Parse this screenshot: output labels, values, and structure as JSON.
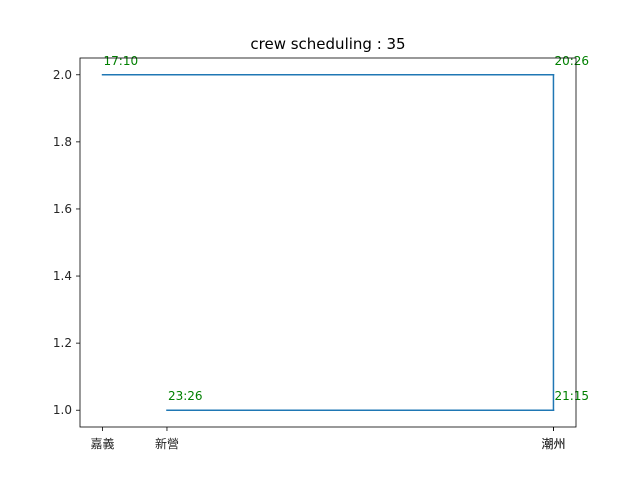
{
  "chart_data": {
    "type": "line",
    "title": "crew scheduling : 35",
    "xlabel": "",
    "ylabel": "",
    "x_categories": [
      {
        "label": "嘉義",
        "x": 0
      },
      {
        "label": "新營",
        "x": 1
      },
      {
        "label": "潮州",
        "x": 7
      },
      {
        "label": "潮州",
        "x": 7
      }
    ],
    "xlim": [
      -0.35,
      7.35
    ],
    "ylim": [
      0.95,
      2.05
    ],
    "yticks": [
      1.0,
      1.2,
      1.4,
      1.6,
      1.8,
      2.0
    ],
    "ytick_labels": [
      "1.0",
      "1.2",
      "1.4",
      "1.6",
      "1.8",
      "2.0"
    ],
    "series": [
      {
        "name": "schedule",
        "color": "#1f77b4",
        "points": [
          {
            "x": 0,
            "y": 2
          },
          {
            "x": 7,
            "y": 2
          },
          {
            "x": 7,
            "y": 1
          },
          {
            "x": 1,
            "y": 1
          }
        ]
      }
    ],
    "annotations": [
      {
        "text": "17:10",
        "x": 0,
        "y": 2,
        "color": "#008000"
      },
      {
        "text": "20:26",
        "x": 7,
        "y": 2,
        "color": "#008000"
      },
      {
        "text": "21:15",
        "x": 7,
        "y": 1,
        "color": "#008000"
      },
      {
        "text": "23:26",
        "x": 1,
        "y": 1,
        "color": "#008000"
      }
    ],
    "grid": false,
    "legend": "none"
  }
}
